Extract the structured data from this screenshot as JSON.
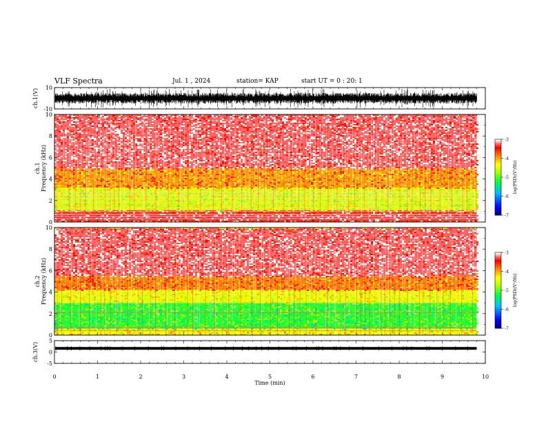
{
  "header": {
    "title": "VLF Spectra",
    "date": "Jul. 1 , 2024",
    "station": "station= KAP",
    "start": "start UT = 0 : 20: 1"
  },
  "chart_data": [
    {
      "type": "line",
      "panel": "ch1-waveform",
      "ylabel": "ch.1(V)",
      "ylim": [
        -10,
        10
      ],
      "yticks": [
        "10",
        "-10"
      ],
      "xlim": [
        0,
        10
      ],
      "data_end": 9.8,
      "amplitude": {
        "typical_min": -5,
        "typical_max": 5,
        "peak_min": -9,
        "peak_max": 9
      }
    },
    {
      "type": "heatmap",
      "panel": "ch1-spectrogram",
      "ylabel_top": "ch.1",
      "ylabel": "Frequency (kHz)",
      "ylim": [
        0,
        10
      ],
      "yticks": [
        "0",
        "2",
        "4",
        "6",
        "8",
        "10"
      ],
      "xlim": [
        0,
        10
      ],
      "data_end": 9.8,
      "bands": [
        {
          "f0": 0,
          "f1": 1.1,
          "level": -3.3
        },
        {
          "f0": 1.1,
          "f1": 3.2,
          "level": -4.5
        },
        {
          "f0": 3.2,
          "f1": 5.0,
          "level": -3.9
        },
        {
          "f0": 5.0,
          "f1": 10.0,
          "level": -3.2
        }
      ],
      "lines_khz": [
        0.3,
        0.5,
        0.7,
        1.0,
        1.3,
        1.8,
        2.2,
        2.5,
        2.8
      ],
      "colorbar": {
        "label": "log(PSD)(V²/Hz)",
        "min": -7,
        "max": -3,
        "ticks": [
          "-3",
          "-4",
          "-5",
          "-6",
          "-7"
        ]
      }
    },
    {
      "type": "heatmap",
      "panel": "ch2-spectrogram",
      "ylabel_top": "ch.2",
      "ylabel": "Frequency (kHz)",
      "ylim": [
        0,
        10
      ],
      "yticks": [
        "0",
        "2",
        "4",
        "6",
        "8",
        "10"
      ],
      "xlim": [
        0,
        10
      ],
      "data_end": 9.8,
      "bands": [
        {
          "f0": 0,
          "f1": 0.6,
          "level": -4.3
        },
        {
          "f0": 0.6,
          "f1": 3.0,
          "level": -5.1
        },
        {
          "f0": 3.0,
          "f1": 4.2,
          "level": -4.4
        },
        {
          "f0": 4.2,
          "f1": 5.5,
          "level": -3.8
        },
        {
          "f0": 5.5,
          "f1": 10.0,
          "level": -3.2
        }
      ],
      "lines_khz": [
        0.4,
        0.7,
        2.1
      ],
      "colorbar": {
        "label": "log(PSD)(V²/Hz)",
        "min": -7,
        "max": -3,
        "ticks": [
          "-3",
          "-4",
          "-5",
          "-6",
          "-7"
        ]
      }
    },
    {
      "type": "line",
      "panel": "ch3-waveform",
      "ylabel": "ch.3(V)",
      "ylim": [
        -5,
        5
      ],
      "yticks": [
        "5",
        "0",
        "-5"
      ],
      "xlim": [
        0,
        10
      ],
      "data_end": 9.8,
      "amplitude": {
        "center": 1.6,
        "half_width": 0.6
      }
    }
  ],
  "xaxis": {
    "label": "Time (min)",
    "ticks": [
      "0",
      "1",
      "2",
      "3",
      "4",
      "5",
      "6",
      "7",
      "8",
      "9",
      "10"
    ]
  },
  "colors": {
    "ink": "#000000",
    "colormap": [
      "#00007f",
      "#0000ff",
      "#00c0ff",
      "#00ff40",
      "#c0ff00",
      "#ffff00",
      "#ff8000",
      "#ff0000",
      "#ff8080",
      "#ffffff"
    ]
  }
}
